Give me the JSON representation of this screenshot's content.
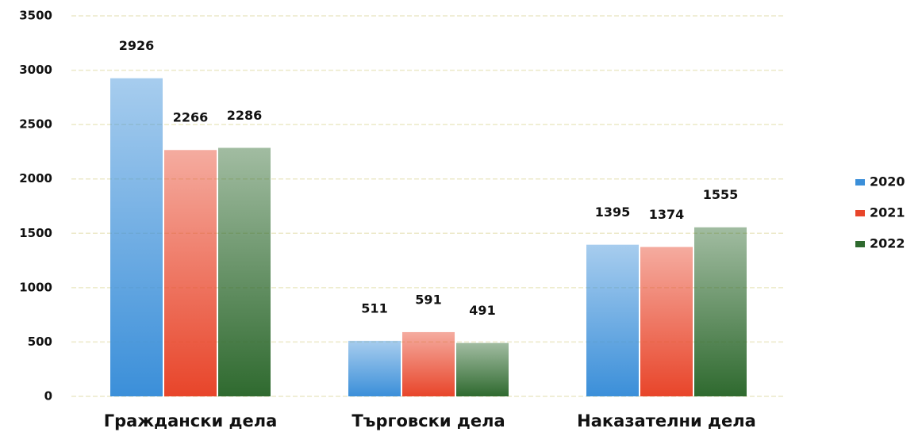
{
  "chart_data": {
    "type": "bar",
    "categories": [
      "Граждански дела",
      "Търговски дела",
      "Наказателни дела"
    ],
    "series": [
      {
        "name": "2020",
        "color": "#3b8fd9",
        "values": [
          2926,
          511,
          1395
        ]
      },
      {
        "name": "2021",
        "color": "#e8452a",
        "values": [
          2266,
          591,
          1374
        ]
      },
      {
        "name": "2022",
        "color": "#2f6a2f",
        "values": [
          2286,
          491,
          1555
        ]
      }
    ],
    "ylim": [
      0,
      3500
    ],
    "yticks": [
      0,
      500,
      1000,
      1500,
      2000,
      2500,
      3000,
      3500
    ],
    "grid": true,
    "legend": "right"
  }
}
